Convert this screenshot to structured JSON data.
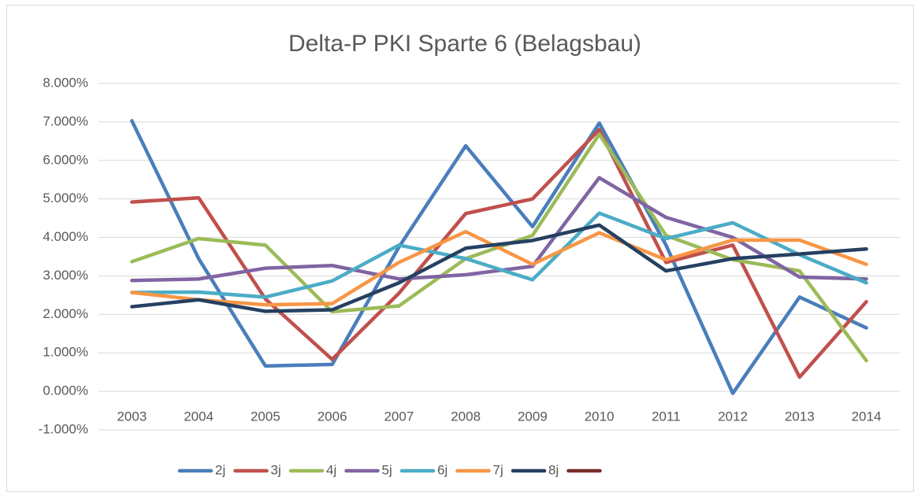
{
  "chart_data": {
    "type": "line",
    "title": "Delta-P PKI Sparte 6 (Belagsbau)",
    "categories": [
      "2003",
      "2004",
      "2005",
      "2006",
      "2007",
      "2008",
      "2009",
      "2010",
      "2011",
      "2012",
      "2013",
      "2014"
    ],
    "ylim": [
      -1,
      8
    ],
    "yticks": [
      {
        "value": -1,
        "label": "-1.000%"
      },
      {
        "value": 0,
        "label": "0.000%"
      },
      {
        "value": 1,
        "label": "1.000%"
      },
      {
        "value": 2,
        "label": "2.000%"
      },
      {
        "value": 3,
        "label": "3.000%"
      },
      {
        "value": 4,
        "label": "4.000%"
      },
      {
        "value": 5,
        "label": "5.000%"
      },
      {
        "value": 6,
        "label": "6.000%"
      },
      {
        "value": 7,
        "label": "7.000%"
      },
      {
        "value": 8,
        "label": "8.000%"
      }
    ],
    "grid": true,
    "legend": "bottom",
    "series": [
      {
        "name": "2j",
        "color": "#4a7ebb",
        "values": [
          7.03,
          3.45,
          0.66,
          0.7,
          3.75,
          6.38,
          4.28,
          6.97,
          3.8,
          -0.05,
          2.45,
          1.65
        ]
      },
      {
        "name": "3j",
        "color": "#c0504d",
        "values": [
          4.92,
          5.03,
          2.4,
          0.83,
          2.55,
          4.62,
          5.0,
          6.8,
          3.35,
          3.8,
          0.37,
          2.33
        ]
      },
      {
        "name": "4j",
        "color": "#9bbb59",
        "values": [
          3.37,
          3.97,
          3.8,
          2.07,
          2.22,
          3.45,
          4.05,
          6.68,
          4.05,
          3.42,
          3.13,
          0.8
        ]
      },
      {
        "name": "5j",
        "color": "#8064a2",
        "values": [
          2.88,
          2.92,
          3.2,
          3.27,
          2.92,
          3.03,
          3.25,
          5.55,
          4.52,
          4.0,
          2.97,
          2.92
        ]
      },
      {
        "name": "6j",
        "color": "#4bacc6",
        "values": [
          2.57,
          2.58,
          2.45,
          2.87,
          3.8,
          3.45,
          2.9,
          4.63,
          3.97,
          4.38,
          3.55,
          2.82
        ]
      },
      {
        "name": "7j",
        "color": "#f79646",
        "values": [
          2.57,
          2.38,
          2.25,
          2.28,
          3.35,
          4.15,
          3.3,
          4.12,
          3.42,
          3.93,
          3.93,
          3.3
        ]
      },
      {
        "name": "8j",
        "color": "#254061",
        "values": [
          2.2,
          2.38,
          2.08,
          2.12,
          2.82,
          3.72,
          3.92,
          4.32,
          3.13,
          3.45,
          3.57,
          3.7
        ]
      },
      {
        "name": null,
        "color": "#772c2a",
        "values": [
          null,
          null,
          null,
          null,
          null,
          null,
          null,
          null,
          null,
          null,
          null,
          null
        ]
      }
    ]
  }
}
